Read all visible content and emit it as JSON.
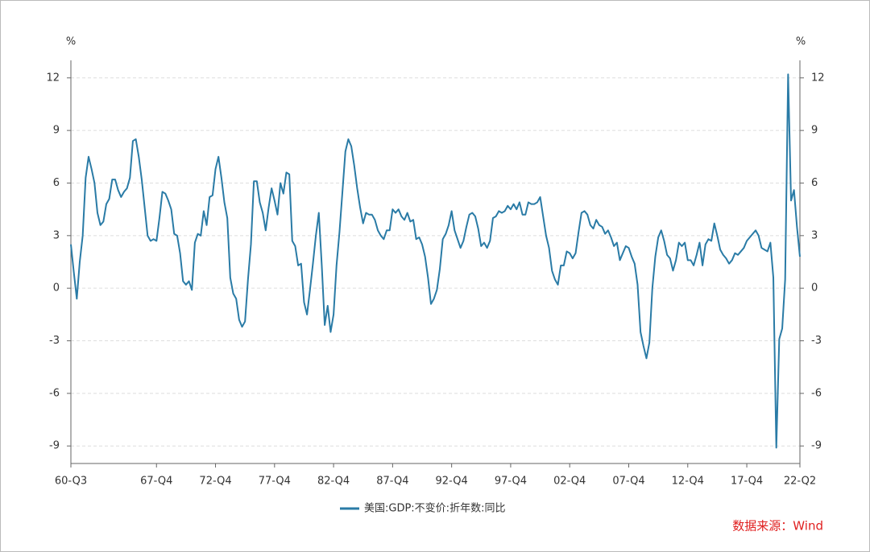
{
  "chart_data": {
    "type": "line",
    "y_label": "%",
    "y2_label": "%",
    "categories": [
      "60-Q3",
      null,
      null,
      null,
      null,
      null,
      null,
      null,
      null,
      null,
      null,
      null,
      null,
      null,
      null,
      null,
      null,
      null,
      null,
      null,
      null,
      null,
      null,
      null,
      null,
      null,
      null,
      null,
      null,
      "67-Q4",
      null,
      null,
      null,
      null,
      null,
      null,
      null,
      null,
      null,
      null,
      null,
      null,
      null,
      null,
      null,
      null,
      null,
      null,
      null,
      "72-Q4",
      null,
      null,
      null,
      null,
      null,
      null,
      null,
      null,
      null,
      null,
      null,
      null,
      null,
      null,
      null,
      null,
      null,
      null,
      null,
      "77-Q4",
      null,
      null,
      null,
      null,
      null,
      null,
      null,
      null,
      null,
      null,
      null,
      null,
      null,
      null,
      null,
      null,
      null,
      null,
      null,
      "82-Q4",
      null,
      null,
      null,
      null,
      null,
      null,
      null,
      null,
      null,
      null,
      null,
      null,
      null,
      null,
      null,
      null,
      null,
      null,
      null,
      "87-Q4",
      null,
      null,
      null,
      null,
      null,
      null,
      null,
      null,
      null,
      null,
      null,
      null,
      null,
      null,
      null,
      null,
      null,
      null,
      null,
      "92-Q4",
      null,
      null,
      null,
      null,
      null,
      null,
      null,
      null,
      null,
      null,
      null,
      null,
      null,
      null,
      null,
      null,
      null,
      null,
      null,
      "97-Q4",
      null,
      null,
      null,
      null,
      null,
      null,
      null,
      null,
      null,
      null,
      null,
      null,
      null,
      null,
      null,
      null,
      null,
      null,
      null,
      "02-Q4",
      null,
      null,
      null,
      null,
      null,
      null,
      null,
      null,
      null,
      null,
      null,
      null,
      null,
      null,
      null,
      null,
      null,
      null,
      null,
      "07-Q4",
      null,
      null,
      null,
      null,
      null,
      null,
      null,
      null,
      null,
      null,
      null,
      null,
      null,
      null,
      null,
      null,
      null,
      null,
      null,
      "12-Q4",
      null,
      null,
      null,
      null,
      null,
      null,
      null,
      null,
      null,
      null,
      null,
      null,
      null,
      null,
      null,
      null,
      null,
      null,
      null,
      "17-Q4",
      null,
      null,
      null,
      null,
      null,
      null,
      null,
      null,
      null,
      null,
      null,
      null,
      null,
      null,
      null,
      null,
      null,
      "22-Q2"
    ],
    "series": [
      {
        "name": "美国:GDP:不变价:折年数:同比",
        "color": "#2a7ba6",
        "values": [
          2.5,
          0.9,
          -0.6,
          1.5,
          3.0,
          6.3,
          7.5,
          6.8,
          6.0,
          4.3,
          3.6,
          3.8,
          4.8,
          5.1,
          6.2,
          6.2,
          5.6,
          5.2,
          5.5,
          5.7,
          6.3,
          8.4,
          8.5,
          7.5,
          6.2,
          4.6,
          3.0,
          2.7,
          2.8,
          2.7,
          4.0,
          5.5,
          5.4,
          5.0,
          4.5,
          3.1,
          3.0,
          2.0,
          0.4,
          0.2,
          0.4,
          -0.1,
          2.6,
          3.1,
          3.0,
          4.4,
          3.6,
          5.2,
          5.3,
          6.8,
          7.5,
          6.3,
          4.9,
          4.0,
          0.6,
          -0.3,
          -0.6,
          -1.8,
          -2.2,
          -1.9,
          0.5,
          2.5,
          6.1,
          6.1,
          4.9,
          4.3,
          3.3,
          4.6,
          5.7,
          5.0,
          4.2,
          6.0,
          5.4,
          6.6,
          6.5,
          2.7,
          2.4,
          1.3,
          1.4,
          -0.8,
          -1.5,
          -0.1,
          1.4,
          3.0,
          4.3,
          1.3,
          -2.1,
          -1.0,
          -2.5,
          -1.5,
          1.3,
          3.2,
          5.5,
          7.8,
          8.5,
          8.1,
          7.0,
          5.7,
          4.6,
          3.7,
          4.3,
          4.2,
          4.2,
          3.9,
          3.3,
          3.0,
          2.8,
          3.3,
          3.3,
          4.5,
          4.3,
          4.5,
          4.1,
          3.9,
          4.3,
          3.8,
          3.9,
          2.8,
          2.9,
          2.5,
          1.8,
          0.6,
          -0.9,
          -0.6,
          -0.1,
          1.1,
          2.8,
          3.1,
          3.6,
          4.4,
          3.3,
          2.8,
          2.3,
          2.7,
          3.5,
          4.2,
          4.3,
          4.1,
          3.4,
          2.4,
          2.6,
          2.3,
          2.7,
          4.0,
          4.1,
          4.4,
          4.3,
          4.4,
          4.7,
          4.5,
          4.8,
          4.5,
          4.9,
          4.2,
          4.2,
          4.9,
          4.8,
          4.8,
          4.9,
          5.2,
          4.1,
          3.0,
          2.3,
          1.0,
          0.5,
          0.2,
          1.3,
          1.3,
          2.1,
          2.0,
          1.7,
          2.0,
          3.2,
          4.3,
          4.4,
          4.2,
          3.6,
          3.4,
          3.9,
          3.6,
          3.5,
          3.1,
          3.3,
          2.9,
          2.4,
          2.6,
          1.6,
          2.0,
          2.4,
          2.3,
          1.8,
          1.4,
          0.2,
          -2.5,
          -3.3,
          -4.0,
          -3.1,
          0.0,
          1.8,
          2.9,
          3.3,
          2.7,
          1.9,
          1.7,
          1.0,
          1.6,
          2.6,
          2.4,
          2.6,
          1.6,
          1.6,
          1.3,
          1.9,
          2.6,
          1.3,
          2.5,
          2.8,
          2.7,
          3.7,
          3.0,
          2.2,
          1.9,
          1.7,
          1.4,
          1.6,
          2.0,
          1.9,
          2.1,
          2.3,
          2.7,
          2.9,
          3.1,
          3.3,
          3.0,
          2.3,
          2.2,
          2.1,
          2.6,
          0.6,
          -9.1,
          -2.9,
          -2.3,
          0.5,
          12.2,
          5.0,
          5.6,
          3.5,
          1.8
        ]
      }
    ],
    "ylim": [
      -10,
      13
    ],
    "yticks": [
      -9,
      -6,
      -3,
      0,
      3,
      6,
      9,
      12
    ],
    "y2lim": [
      -10,
      13
    ],
    "y2ticks": [
      -9,
      -6,
      -3,
      0,
      3,
      6,
      9,
      12
    ],
    "grid": true,
    "legend": "bottom",
    "source": "数据来源：Wind",
    "source_color": "#e02020"
  }
}
